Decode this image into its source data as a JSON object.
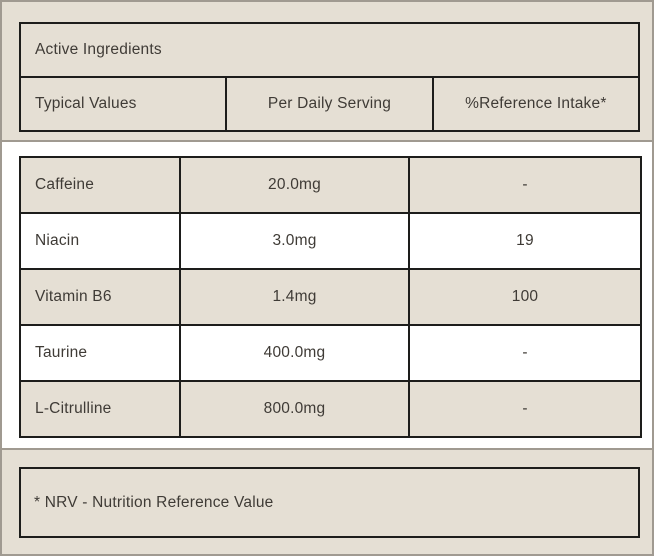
{
  "colors": {
    "beige": "#e5dfd4",
    "panel_border": "#a09a91",
    "table_border": "#1d1d1b",
    "text": "#3f3b36"
  },
  "header": {
    "title": "Active Ingredients",
    "columns": [
      "Typical Values",
      "Per Daily Serving",
      "%Reference Intake*"
    ]
  },
  "ingredients": {
    "rows": [
      {
        "name": "Caffeine",
        "per_serving": "20.0mg",
        "reference_intake": "-"
      },
      {
        "name": "Niacin",
        "per_serving": "3.0mg",
        "reference_intake": "19"
      },
      {
        "name": "Vitamin B6",
        "per_serving": "1.4mg",
        "reference_intake": "100"
      },
      {
        "name": "Taurine",
        "per_serving": "400.0mg",
        "reference_intake": "-"
      },
      {
        "name": "L-Citrulline",
        "per_serving": "800.0mg",
        "reference_intake": "-"
      }
    ]
  },
  "footnote": {
    "text": "* NRV - Nutrition Reference Value"
  }
}
